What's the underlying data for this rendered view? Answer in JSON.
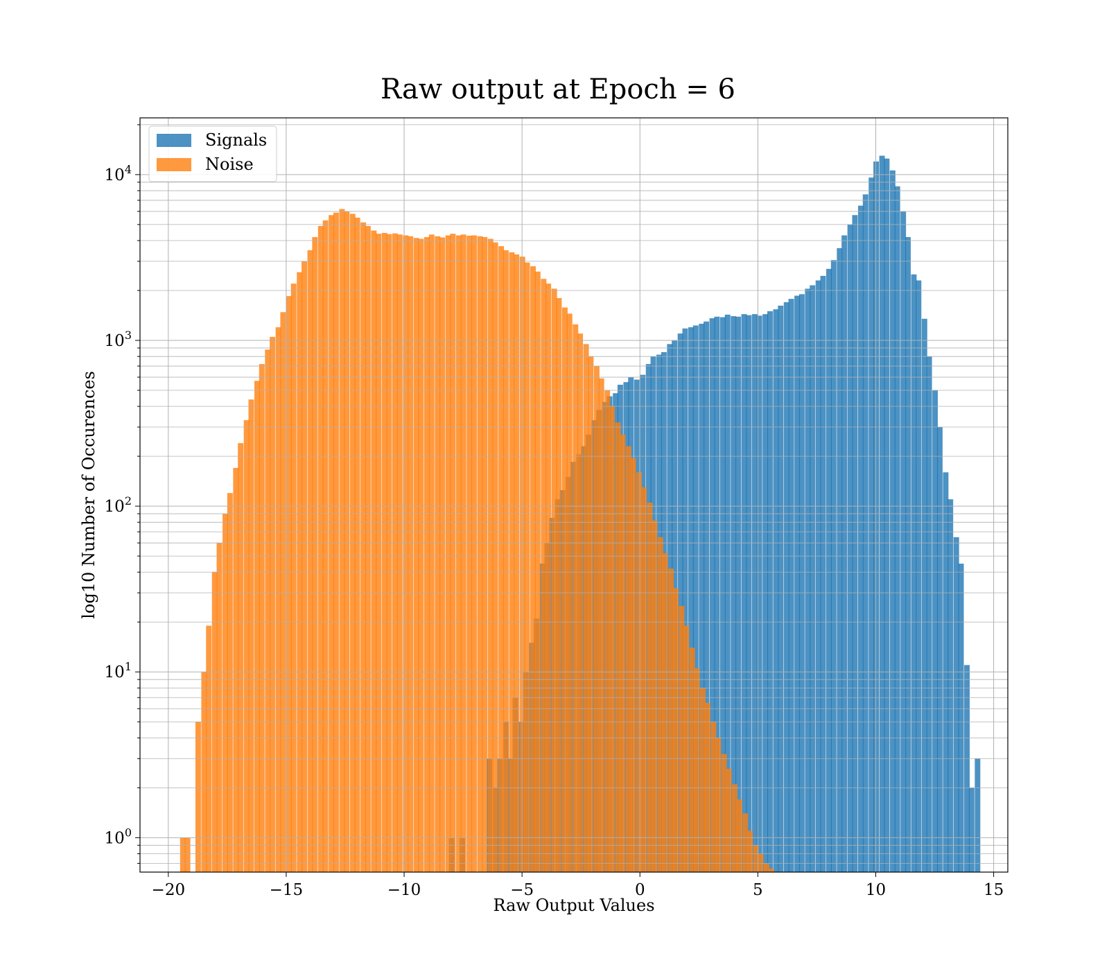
{
  "chart_data": {
    "type": "histogram",
    "title": "Raw output at Epoch = 6",
    "xlabel": "Raw Output Values",
    "ylabel": "log10 Number of Occurences",
    "yscale": "log",
    "xlim": [
      -21.2,
      15.6
    ],
    "ylim": [
      0.62,
      22000
    ],
    "x_ticks": [
      -20,
      -15,
      -10,
      -5,
      0,
      5,
      10,
      15
    ],
    "x_tick_labels": [
      "−20",
      "−15",
      "−10",
      "−5",
      "0",
      "5",
      "10",
      "15"
    ],
    "y_ticks": [
      1,
      10,
      100,
      1000,
      10000
    ],
    "y_tick_bases": [
      "10",
      "10",
      "10",
      "10",
      "10"
    ],
    "y_tick_exps": [
      "0",
      "1",
      "2",
      "3",
      "4"
    ],
    "grid": true,
    "legend_position": "upper-left",
    "series": [
      {
        "name": "Signals",
        "color": "#1f77b4",
        "opacity": 0.8,
        "bin_width": 0.225,
        "bins": [
          [
            -8.1,
            1
          ],
          [
            -7.65,
            1
          ],
          [
            -6.5,
            3
          ],
          [
            -6.25,
            2
          ],
          [
            -6.05,
            3
          ],
          [
            -5.8,
            5
          ],
          [
            -5.6,
            3
          ],
          [
            -5.4,
            7
          ],
          [
            -5.15,
            5
          ],
          [
            -4.95,
            10
          ],
          [
            -4.7,
            15
          ],
          [
            -4.5,
            21
          ],
          [
            -4.25,
            45
          ],
          [
            -4.05,
            60
          ],
          [
            -3.85,
            85
          ],
          [
            -3.6,
            110
          ],
          [
            -3.4,
            125
          ],
          [
            -3.15,
            150
          ],
          [
            -2.95,
            185
          ],
          [
            -2.7,
            205
          ],
          [
            -2.5,
            230
          ],
          [
            -2.3,
            270
          ],
          [
            -2.05,
            330
          ],
          [
            -1.85,
            380
          ],
          [
            -1.6,
            425
          ],
          [
            -1.4,
            460
          ],
          [
            -1.15,
            480
          ],
          [
            -0.95,
            540
          ],
          [
            -0.7,
            560
          ],
          [
            -0.5,
            600
          ],
          [
            -0.25,
            580
          ],
          [
            0,
            620
          ],
          [
            0.25,
            720
          ],
          [
            0.45,
            800
          ],
          [
            0.7,
            820
          ],
          [
            0.9,
            850
          ],
          [
            1.15,
            950
          ],
          [
            1.35,
            1000
          ],
          [
            1.6,
            1100
          ],
          [
            1.8,
            1180
          ],
          [
            2.05,
            1200
          ],
          [
            2.25,
            1230
          ],
          [
            2.5,
            1260
          ],
          [
            2.7,
            1300
          ],
          [
            2.95,
            1360
          ],
          [
            3.15,
            1390
          ],
          [
            3.4,
            1380
          ],
          [
            3.6,
            1430
          ],
          [
            3.85,
            1400
          ],
          [
            4.05,
            1390
          ],
          [
            4.3,
            1440
          ],
          [
            4.5,
            1420
          ],
          [
            4.75,
            1440
          ],
          [
            4.95,
            1410
          ],
          [
            5.2,
            1440
          ],
          [
            5.4,
            1500
          ],
          [
            5.65,
            1540
          ],
          [
            5.85,
            1620
          ],
          [
            6.1,
            1700
          ],
          [
            6.3,
            1780
          ],
          [
            6.55,
            1860
          ],
          [
            6.75,
            1900
          ],
          [
            7.0,
            2050
          ],
          [
            7.2,
            2150
          ],
          [
            7.45,
            2300
          ],
          [
            7.65,
            2450
          ],
          [
            7.9,
            2700
          ],
          [
            8.1,
            3050
          ],
          [
            8.35,
            3600
          ],
          [
            8.55,
            4300
          ],
          [
            8.8,
            5000
          ],
          [
            9.0,
            5700
          ],
          [
            9.25,
            6500
          ],
          [
            9.45,
            7600
          ],
          [
            9.7,
            9600
          ],
          [
            9.9,
            12000
          ],
          [
            10.15,
            13000
          ],
          [
            10.35,
            12500
          ],
          [
            10.6,
            10600
          ],
          [
            10.8,
            8500
          ],
          [
            11.05,
            6000
          ],
          [
            11.25,
            4200
          ],
          [
            11.5,
            2500
          ],
          [
            11.7,
            2300
          ],
          [
            11.95,
            1350
          ],
          [
            12.15,
            800
          ],
          [
            12.4,
            500
          ],
          [
            12.6,
            300
          ],
          [
            12.85,
            160
          ],
          [
            13.05,
            110
          ],
          [
            13.3,
            65
          ],
          [
            13.5,
            45
          ],
          [
            13.75,
            11
          ],
          [
            13.95,
            2
          ],
          [
            14.2,
            3
          ]
        ]
      },
      {
        "name": "Noise",
        "color": "#ff7f0e",
        "opacity": 0.8,
        "bin_width": 0.225,
        "bins": [
          [
            -19.5,
            1
          ],
          [
            -19.3,
            1
          ],
          [
            -18.85,
            5
          ],
          [
            -18.6,
            10
          ],
          [
            -18.4,
            19
          ],
          [
            -18.15,
            40
          ],
          [
            -17.95,
            60
          ],
          [
            -17.7,
            90
          ],
          [
            -17.5,
            120
          ],
          [
            -17.25,
            170
          ],
          [
            -17.05,
            240
          ],
          [
            -16.8,
            330
          ],
          [
            -16.6,
            440
          ],
          [
            -16.35,
            570
          ],
          [
            -16.15,
            720
          ],
          [
            -15.9,
            880
          ],
          [
            -15.7,
            1050
          ],
          [
            -15.45,
            1200
          ],
          [
            -15.25,
            1480
          ],
          [
            -15.0,
            1850
          ],
          [
            -14.8,
            2200
          ],
          [
            -14.55,
            2580
          ],
          [
            -14.35,
            3000
          ],
          [
            -14.1,
            3500
          ],
          [
            -13.9,
            4200
          ],
          [
            -13.65,
            4900
          ],
          [
            -13.45,
            5300
          ],
          [
            -13.2,
            5700
          ],
          [
            -13.0,
            5900
          ],
          [
            -12.75,
            6200
          ],
          [
            -12.55,
            6000
          ],
          [
            -12.3,
            5800
          ],
          [
            -12.1,
            5500
          ],
          [
            -11.85,
            5150
          ],
          [
            -11.65,
            4900
          ],
          [
            -11.4,
            4600
          ],
          [
            -11.2,
            4400
          ],
          [
            -10.95,
            4450
          ],
          [
            -10.75,
            4380
          ],
          [
            -10.5,
            4420
          ],
          [
            -10.3,
            4350
          ],
          [
            -10.05,
            4300
          ],
          [
            -9.85,
            4250
          ],
          [
            -9.6,
            4150
          ],
          [
            -9.4,
            4100
          ],
          [
            -9.15,
            4200
          ],
          [
            -8.95,
            4350
          ],
          [
            -8.7,
            4250
          ],
          [
            -8.5,
            4180
          ],
          [
            -8.25,
            4300
          ],
          [
            -8.05,
            4400
          ],
          [
            -7.8,
            4300
          ],
          [
            -7.6,
            4350
          ],
          [
            -7.35,
            4280
          ],
          [
            -7.15,
            4300
          ],
          [
            -6.9,
            4250
          ],
          [
            -6.7,
            4200
          ],
          [
            -6.45,
            4100
          ],
          [
            -6.25,
            3900
          ],
          [
            -6.0,
            3700
          ],
          [
            -5.8,
            3500
          ],
          [
            -5.55,
            3400
          ],
          [
            -5.35,
            3300
          ],
          [
            -5.1,
            3200
          ],
          [
            -4.9,
            2950
          ],
          [
            -4.65,
            2800
          ],
          [
            -4.45,
            2600
          ],
          [
            -4.2,
            2350
          ],
          [
            -4.0,
            2200
          ],
          [
            -3.75,
            2050
          ],
          [
            -3.55,
            1800
          ],
          [
            -3.3,
            1580
          ],
          [
            -3.1,
            1450
          ],
          [
            -2.85,
            1250
          ],
          [
            -2.65,
            1100
          ],
          [
            -2.4,
            950
          ],
          [
            -2.2,
            800
          ],
          [
            -1.95,
            700
          ],
          [
            -1.75,
            590
          ],
          [
            -1.5,
            500
          ],
          [
            -1.3,
            400
          ],
          [
            -1.05,
            320
          ],
          [
            -0.85,
            270
          ],
          [
            -0.6,
            230
          ],
          [
            -0.4,
            195
          ],
          [
            -0.15,
            160
          ],
          [
            0.05,
            130
          ],
          [
            0.3,
            105
          ],
          [
            0.5,
            82
          ],
          [
            0.75,
            65
          ],
          [
            0.95,
            52
          ],
          [
            1.2,
            42
          ],
          [
            1.4,
            32
          ],
          [
            1.65,
            25
          ],
          [
            1.85,
            19
          ],
          [
            2.1,
            14
          ],
          [
            2.3,
            10.5
          ],
          [
            2.55,
            8
          ],
          [
            2.75,
            6.5
          ],
          [
            3.0,
            5
          ],
          [
            3.2,
            4
          ],
          [
            3.45,
            3.2
          ],
          [
            3.65,
            2.6
          ],
          [
            3.9,
            2.1
          ],
          [
            4.1,
            1.7
          ],
          [
            4.35,
            1.4
          ],
          [
            4.55,
            1.1
          ],
          [
            4.8,
            0.9
          ],
          [
            5.0,
            0.8
          ],
          [
            5.25,
            0.7
          ],
          [
            5.45,
            0.65
          ],
          [
            5.7,
            0.62
          ],
          [
            5.9,
            0.62
          ],
          [
            6.15,
            0.62
          ]
        ]
      }
    ]
  }
}
